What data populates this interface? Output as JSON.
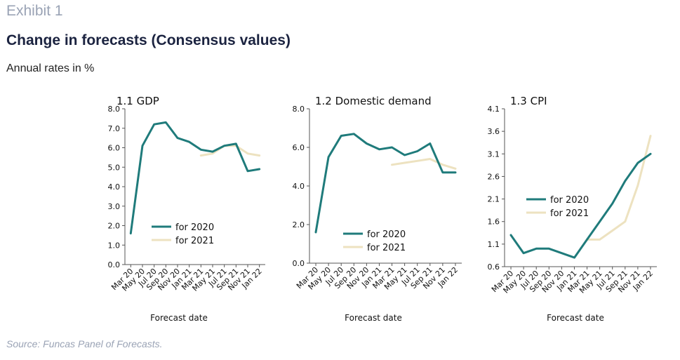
{
  "header": {
    "exhibit": "Exhibit 1",
    "title": "Change in forecasts (Consensus values)",
    "subtitle": "Annual rates in %"
  },
  "footer": {
    "source": "Source: Funcas Panel of Forecasts."
  },
  "colors": {
    "series_2020": "#1f7b7b",
    "series_2021": "#ede2c0"
  },
  "chart_data": [
    {
      "type": "line",
      "title": "1.1 GDP",
      "xlabel": "Forecast date",
      "ylabel": "",
      "x": [
        "Mar 20",
        "May 20",
        "Jul 20",
        "Sep 20",
        "Nov 20",
        "Jan 21",
        "Mar 21",
        "May 21",
        "Jul 21",
        "Sep 21",
        "Nov 21",
        "Jan 22"
      ],
      "ylim": [
        0,
        8
      ],
      "yticks": [
        "0.0",
        "1.0",
        "2.0",
        "3.0",
        "4.0",
        "5.0",
        "6.0",
        "7.0",
        "8.0"
      ],
      "series": [
        {
          "name": "for 2020",
          "values": [
            1.6,
            6.1,
            7.2,
            7.3,
            6.5,
            6.3,
            5.9,
            5.8,
            6.1,
            6.2,
            4.8,
            4.9
          ]
        },
        {
          "name": "for 2021",
          "values": [
            null,
            null,
            null,
            null,
            null,
            null,
            5.6,
            5.7,
            6.1,
            6.1,
            5.7,
            5.6
          ]
        }
      ],
      "legend": "inside-lower-center"
    },
    {
      "type": "line",
      "title": "1.2 Domestic demand",
      "xlabel": "Forecast date",
      "ylabel": "",
      "x": [
        "Mar 20",
        "May 20",
        "Jul 20",
        "Sep 20",
        "Nov 20",
        "Jan 21",
        "Mar 21",
        "May 21",
        "Jul 21",
        "Sep 21",
        "Nov 21",
        "Jan 22"
      ],
      "ylim": [
        0,
        8
      ],
      "yticks": [
        "0.0",
        "2.0",
        "4.0",
        "6.0",
        "8.0"
      ],
      "series": [
        {
          "name": "for 2020",
          "values": [
            1.6,
            5.5,
            6.6,
            6.7,
            6.2,
            5.9,
            6.0,
            5.6,
            5.8,
            6.2,
            4.7,
            4.7
          ]
        },
        {
          "name": "for 2021",
          "values": [
            null,
            null,
            null,
            null,
            null,
            null,
            5.1,
            5.2,
            5.3,
            5.4,
            5.1,
            4.9
          ]
        }
      ],
      "legend": "inside-lower-center"
    },
    {
      "type": "line",
      "title": "1.3 CPI",
      "xlabel": "Forecast date",
      "ylabel": "",
      "x": [
        "Mar 20",
        "May 20",
        "Jul 20",
        "Sep 20",
        "Nov 20",
        "Jan 21",
        "Mar 21",
        "May 21",
        "Jul 21",
        "Sep 21",
        "Nov 21",
        "Jan 22"
      ],
      "ylim": [
        0.6,
        4.1
      ],
      "yticks": [
        "0.6",
        "1.1",
        "1.6",
        "2.1",
        "2.6",
        "3.1",
        "3.6",
        "4.1"
      ],
      "series": [
        {
          "name": "for 2020",
          "values": [
            1.3,
            0.9,
            1.0,
            1.0,
            0.9,
            0.8,
            1.2,
            1.6,
            2.0,
            2.5,
            2.9,
            3.1
          ]
        },
        {
          "name": "for 2021",
          "values": [
            null,
            null,
            null,
            null,
            null,
            null,
            1.2,
            1.2,
            1.4,
            1.6,
            2.4,
            3.5
          ]
        }
      ],
      "legend": "inside-middle-left"
    }
  ]
}
